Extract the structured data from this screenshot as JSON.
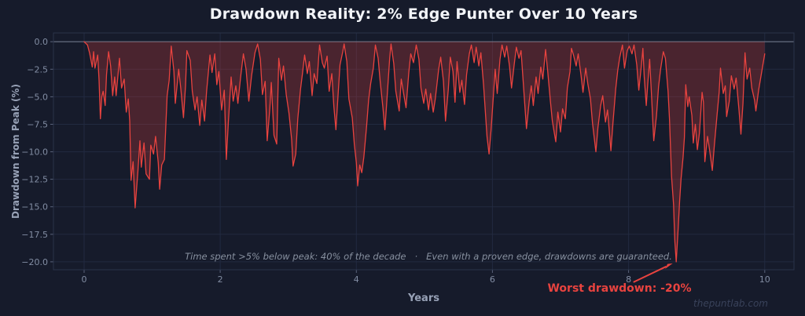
{
  "title": "Drawdown Reality: 2% Edge Punter Over 10 Years",
  "watermark": "thepuntlab.com",
  "annotations": {
    "stats_note": "Time spent >5% below peak: 40% of the decade   ·   Even with a proven edge, drawdowns are guaranteed.",
    "worst_drawdown_label": "Worst drawdown: -20%"
  },
  "colors": {
    "background": "#161b2b",
    "grid": "#222a40",
    "zero_line": "#6e7789",
    "spine": "#2b3349",
    "tick": "#59627a",
    "tick_text": "#828da3",
    "line": "#e8433f",
    "fill": "rgba(231,62,58,0.25)",
    "title_text": "#f2f4f8",
    "axis_label_text": "#97a1b6",
    "note_text": "#87909f",
    "worst_text": "#e8433f",
    "watermark_text": "#39425a"
  },
  "chart_data": {
    "type": "area",
    "title": "Drawdown Reality: 2% Edge Punter Over 10 Years",
    "xlabel": "Years",
    "ylabel": "Drawdown from Peak (%)",
    "xlim": [
      -0.45,
      10.43
    ],
    "ylim": [
      -20.72,
      0.8
    ],
    "grid": true,
    "legend": "none",
    "xticks": [
      0,
      2,
      4,
      6,
      8,
      10
    ],
    "xtick_labels": [
      "0",
      "2",
      "4",
      "6",
      "8",
      "10"
    ],
    "yticks": [
      0,
      -2.5,
      -5,
      -7.5,
      -10,
      -12.5,
      -15,
      -17.5,
      -20
    ],
    "ytick_labels": [
      "0.0",
      "−2.5",
      "−5.0",
      "−7.5",
      "−10.0",
      "−12.5",
      "−15.0",
      "−17.5",
      "−20.0"
    ],
    "worst_point": [
      8.7,
      -20.0
    ],
    "series": [
      {
        "name": "drawdown",
        "points": [
          [
            0.0,
            0.0
          ],
          [
            0.05,
            -0.3
          ],
          [
            0.08,
            -1.0
          ],
          [
            0.12,
            -2.3
          ],
          [
            0.14,
            -0.9
          ],
          [
            0.16,
            -2.4
          ],
          [
            0.2,
            -1.2
          ],
          [
            0.22,
            -3.5
          ],
          [
            0.24,
            -7.0
          ],
          [
            0.26,
            -5.0
          ],
          [
            0.28,
            -4.5
          ],
          [
            0.31,
            -5.8
          ],
          [
            0.33,
            -3.0
          ],
          [
            0.36,
            -0.9
          ],
          [
            0.39,
            -2.2
          ],
          [
            0.42,
            -4.9
          ],
          [
            0.45,
            -3.2
          ],
          [
            0.47,
            -4.9
          ],
          [
            0.52,
            -1.5
          ],
          [
            0.55,
            -4.2
          ],
          [
            0.59,
            -3.4
          ],
          [
            0.62,
            -6.4
          ],
          [
            0.65,
            -5.2
          ],
          [
            0.67,
            -7.2
          ],
          [
            0.69,
            -12.6
          ],
          [
            0.72,
            -10.9
          ],
          [
            0.75,
            -15.1
          ],
          [
            0.79,
            -11.8
          ],
          [
            0.82,
            -9.0
          ],
          [
            0.84,
            -11.4
          ],
          [
            0.88,
            -9.2
          ],
          [
            0.91,
            -12.0
          ],
          [
            0.96,
            -12.5
          ],
          [
            0.98,
            -9.4
          ],
          [
            1.02,
            -10.2
          ],
          [
            1.05,
            -8.6
          ],
          [
            1.09,
            -11.0
          ],
          [
            1.11,
            -13.4
          ],
          [
            1.14,
            -11.2
          ],
          [
            1.18,
            -10.7
          ],
          [
            1.22,
            -4.9
          ],
          [
            1.25,
            -3.5
          ],
          [
            1.28,
            -0.4
          ],
          [
            1.32,
            -2.7
          ],
          [
            1.34,
            -5.6
          ],
          [
            1.39,
            -2.5
          ],
          [
            1.42,
            -4.2
          ],
          [
            1.46,
            -6.9
          ],
          [
            1.49,
            -4.0
          ],
          [
            1.51,
            -0.8
          ],
          [
            1.56,
            -1.7
          ],
          [
            1.59,
            -4.5
          ],
          [
            1.63,
            -6.2
          ],
          [
            1.66,
            -5.0
          ],
          [
            1.7,
            -7.6
          ],
          [
            1.73,
            -5.3
          ],
          [
            1.77,
            -7.2
          ],
          [
            1.8,
            -4.5
          ],
          [
            1.85,
            -1.2
          ],
          [
            1.88,
            -2.8
          ],
          [
            1.92,
            -1.1
          ],
          [
            1.95,
            -3.9
          ],
          [
            1.98,
            -2.7
          ],
          [
            2.02,
            -6.2
          ],
          [
            2.06,
            -4.4
          ],
          [
            2.09,
            -10.7
          ],
          [
            2.12,
            -7.3
          ],
          [
            2.16,
            -3.2
          ],
          [
            2.19,
            -5.4
          ],
          [
            2.23,
            -4.0
          ],
          [
            2.26,
            -5.6
          ],
          [
            2.3,
            -3.2
          ],
          [
            2.34,
            -1.1
          ],
          [
            2.38,
            -2.5
          ],
          [
            2.42,
            -5.4
          ],
          [
            2.46,
            -3.1
          ],
          [
            2.51,
            -1.0
          ],
          [
            2.55,
            -0.2
          ],
          [
            2.59,
            -1.6
          ],
          [
            2.62,
            -4.8
          ],
          [
            2.66,
            -3.6
          ],
          [
            2.69,
            -9.0
          ],
          [
            2.73,
            -6.0
          ],
          [
            2.75,
            -3.7
          ],
          [
            2.79,
            -8.5
          ],
          [
            2.83,
            -9.3
          ],
          [
            2.86,
            -1.5
          ],
          [
            2.9,
            -3.5
          ],
          [
            2.93,
            -2.2
          ],
          [
            2.97,
            -4.8
          ],
          [
            3.01,
            -6.5
          ],
          [
            3.05,
            -8.9
          ],
          [
            3.07,
            -11.3
          ],
          [
            3.11,
            -10.2
          ],
          [
            3.14,
            -7.0
          ],
          [
            3.18,
            -4.3
          ],
          [
            3.21,
            -2.8
          ],
          [
            3.24,
            -1.2
          ],
          [
            3.28,
            -2.9
          ],
          [
            3.31,
            -1.8
          ],
          [
            3.35,
            -4.9
          ],
          [
            3.38,
            -2.9
          ],
          [
            3.42,
            -3.8
          ],
          [
            3.46,
            -0.3
          ],
          [
            3.5,
            -1.9
          ],
          [
            3.53,
            -2.4
          ],
          [
            3.57,
            -1.3
          ],
          [
            3.6,
            -4.5
          ],
          [
            3.64,
            -2.9
          ],
          [
            3.67,
            -5.9
          ],
          [
            3.7,
            -8.0
          ],
          [
            3.73,
            -5.0
          ],
          [
            3.76,
            -2.1
          ],
          [
            3.8,
            -0.9
          ],
          [
            3.82,
            -0.2
          ],
          [
            3.86,
            -1.8
          ],
          [
            3.89,
            -5.2
          ],
          [
            3.94,
            -6.9
          ],
          [
            3.97,
            -9.3
          ],
          [
            4.0,
            -11.0
          ],
          [
            4.02,
            -13.1
          ],
          [
            4.05,
            -11.2
          ],
          [
            4.08,
            -11.9
          ],
          [
            4.11,
            -10.5
          ],
          [
            4.15,
            -7.7
          ],
          [
            4.18,
            -5.3
          ],
          [
            4.21,
            -3.8
          ],
          [
            4.25,
            -2.4
          ],
          [
            4.28,
            -0.3
          ],
          [
            4.32,
            -1.5
          ],
          [
            4.35,
            -3.6
          ],
          [
            4.39,
            -6.0
          ],
          [
            4.42,
            -8.0
          ],
          [
            4.46,
            -4.3
          ],
          [
            4.49,
            -1.5
          ],
          [
            4.51,
            -0.2
          ],
          [
            4.55,
            -2.0
          ],
          [
            4.58,
            -4.5
          ],
          [
            4.63,
            -6.3
          ],
          [
            4.66,
            -3.4
          ],
          [
            4.7,
            -4.9
          ],
          [
            4.73,
            -6.0
          ],
          [
            4.77,
            -2.8
          ],
          [
            4.8,
            -1.1
          ],
          [
            4.84,
            -1.9
          ],
          [
            4.88,
            -0.3
          ],
          [
            4.92,
            -1.6
          ],
          [
            4.95,
            -4.2
          ],
          [
            4.99,
            -5.6
          ],
          [
            5.02,
            -4.3
          ],
          [
            5.06,
            -6.2
          ],
          [
            5.09,
            -4.7
          ],
          [
            5.13,
            -6.4
          ],
          [
            5.16,
            -5.2
          ],
          [
            5.21,
            -2.5
          ],
          [
            5.24,
            -1.4
          ],
          [
            5.28,
            -3.6
          ],
          [
            5.31,
            -7.2
          ],
          [
            5.35,
            -4.4
          ],
          [
            5.38,
            -1.4
          ],
          [
            5.42,
            -2.7
          ],
          [
            5.45,
            -5.5
          ],
          [
            5.48,
            -1.8
          ],
          [
            5.52,
            -4.6
          ],
          [
            5.55,
            -3.5
          ],
          [
            5.59,
            -5.7
          ],
          [
            5.62,
            -3.0
          ],
          [
            5.66,
            -1.1
          ],
          [
            5.69,
            -0.3
          ],
          [
            5.73,
            -1.9
          ],
          [
            5.76,
            -0.5
          ],
          [
            5.8,
            -2.2
          ],
          [
            5.83,
            -1.0
          ],
          [
            5.87,
            -4.0
          ],
          [
            5.9,
            -6.8
          ],
          [
            5.92,
            -8.6
          ],
          [
            5.95,
            -10.2
          ],
          [
            5.98,
            -8.0
          ],
          [
            6.02,
            -4.3
          ],
          [
            6.04,
            -2.5
          ],
          [
            6.07,
            -4.7
          ],
          [
            6.11,
            -1.6
          ],
          [
            6.14,
            -0.3
          ],
          [
            6.18,
            -1.4
          ],
          [
            6.21,
            -0.4
          ],
          [
            6.25,
            -2.2
          ],
          [
            6.28,
            -4.2
          ],
          [
            6.32,
            -2.0
          ],
          [
            6.35,
            -0.5
          ],
          [
            6.39,
            -1.5
          ],
          [
            6.42,
            -0.8
          ],
          [
            6.45,
            -3.5
          ],
          [
            6.5,
            -7.9
          ],
          [
            6.54,
            -5.4
          ],
          [
            6.57,
            -4.0
          ],
          [
            6.6,
            -5.8
          ],
          [
            6.64,
            -3.2
          ],
          [
            6.67,
            -4.7
          ],
          [
            6.71,
            -2.3
          ],
          [
            6.74,
            -3.4
          ],
          [
            6.78,
            -0.7
          ],
          [
            6.81,
            -2.6
          ],
          [
            6.85,
            -5.3
          ],
          [
            6.88,
            -7.2
          ],
          [
            6.93,
            -9.1
          ],
          [
            6.96,
            -6.4
          ],
          [
            7.0,
            -8.2
          ],
          [
            7.03,
            -6.1
          ],
          [
            7.07,
            -7.0
          ],
          [
            7.1,
            -4.2
          ],
          [
            7.14,
            -2.7
          ],
          [
            7.16,
            -0.6
          ],
          [
            7.19,
            -1.2
          ],
          [
            7.23,
            -2.2
          ],
          [
            7.26,
            -1.1
          ],
          [
            7.3,
            -3.0
          ],
          [
            7.33,
            -4.6
          ],
          [
            7.37,
            -2.4
          ],
          [
            7.4,
            -3.8
          ],
          [
            7.44,
            -5.2
          ],
          [
            7.47,
            -7.4
          ],
          [
            7.52,
            -10.0
          ],
          [
            7.55,
            -7.8
          ],
          [
            7.59,
            -5.8
          ],
          [
            7.62,
            -4.9
          ],
          [
            7.66,
            -7.3
          ],
          [
            7.69,
            -6.2
          ],
          [
            7.74,
            -9.9
          ],
          [
            7.77,
            -7.4
          ],
          [
            7.81,
            -4.3
          ],
          [
            7.84,
            -2.6
          ],
          [
            7.87,
            -1.4
          ],
          [
            7.91,
            -0.3
          ],
          [
            7.94,
            -2.4
          ],
          [
            7.98,
            -0.8
          ],
          [
            8.01,
            -0.4
          ],
          [
            8.05,
            -1.1
          ],
          [
            8.08,
            -0.3
          ],
          [
            8.12,
            -2.1
          ],
          [
            8.15,
            -4.4
          ],
          [
            8.19,
            -2.0
          ],
          [
            8.21,
            -0.6
          ],
          [
            8.23,
            -3.2
          ],
          [
            8.26,
            -5.8
          ],
          [
            8.28,
            -3.9
          ],
          [
            8.31,
            -1.6
          ],
          [
            8.34,
            -5.2
          ],
          [
            8.37,
            -9.0
          ],
          [
            8.41,
            -6.7
          ],
          [
            8.44,
            -4.1
          ],
          [
            8.47,
            -2.5
          ],
          [
            8.51,
            -0.9
          ],
          [
            8.54,
            -1.5
          ],
          [
            8.58,
            -4.5
          ],
          [
            8.6,
            -7.0
          ],
          [
            8.63,
            -12.2
          ],
          [
            8.66,
            -14.8
          ],
          [
            8.67,
            -16.5
          ],
          [
            8.68,
            -18.2
          ],
          [
            8.7,
            -20.0
          ],
          [
            8.73,
            -16.8
          ],
          [
            8.75,
            -14.5
          ],
          [
            8.77,
            -12.5
          ],
          [
            8.8,
            -10.5
          ],
          [
            8.82,
            -8.7
          ],
          [
            8.84,
            -3.9
          ],
          [
            8.87,
            -5.9
          ],
          [
            8.89,
            -5.0
          ],
          [
            8.93,
            -6.7
          ],
          [
            8.95,
            -9.2
          ],
          [
            8.98,
            -7.5
          ],
          [
            9.01,
            -9.8
          ],
          [
            9.04,
            -8.3
          ],
          [
            9.08,
            -4.6
          ],
          [
            9.1,
            -5.5
          ],
          [
            9.12,
            -10.9
          ],
          [
            9.16,
            -8.6
          ],
          [
            9.19,
            -9.8
          ],
          [
            9.23,
            -11.7
          ],
          [
            9.26,
            -9.4
          ],
          [
            9.3,
            -6.6
          ],
          [
            9.33,
            -4.6
          ],
          [
            9.35,
            -2.4
          ],
          [
            9.39,
            -4.7
          ],
          [
            9.42,
            -4.0
          ],
          [
            9.44,
            -6.8
          ],
          [
            9.48,
            -5.4
          ],
          [
            9.51,
            -3.1
          ],
          [
            9.55,
            -4.3
          ],
          [
            9.58,
            -3.3
          ],
          [
            9.62,
            -6.1
          ],
          [
            9.65,
            -8.4
          ],
          [
            9.68,
            -5.6
          ],
          [
            9.71,
            -1.0
          ],
          [
            9.74,
            -3.4
          ],
          [
            9.78,
            -2.4
          ],
          [
            9.81,
            -4.2
          ],
          [
            9.85,
            -5.3
          ],
          [
            9.87,
            -6.3
          ],
          [
            9.91,
            -4.4
          ],
          [
            9.94,
            -3.3
          ],
          [
            9.97,
            -2.2
          ],
          [
            10.0,
            -1.1
          ]
        ]
      }
    ]
  }
}
